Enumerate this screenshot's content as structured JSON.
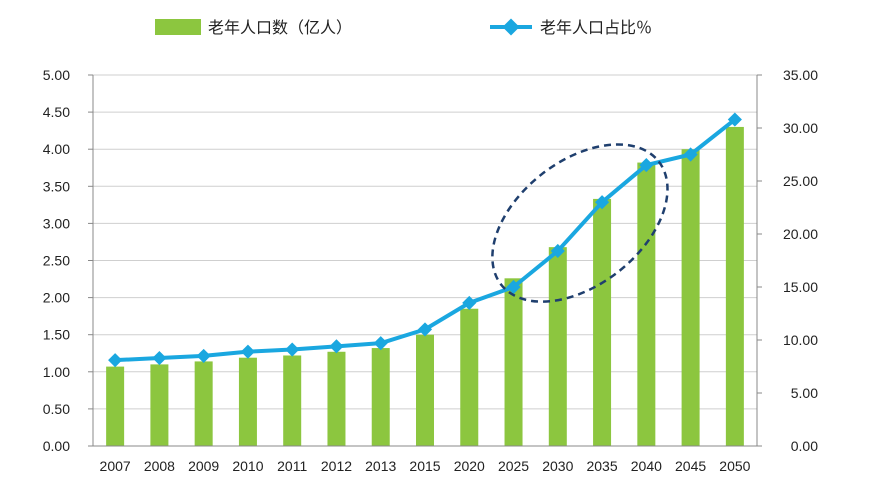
{
  "chart_data": {
    "type": "bar+line",
    "categories": [
      "2007",
      "2008",
      "2009",
      "2010",
      "2011",
      "2012",
      "2013",
      "2015",
      "2020",
      "2025",
      "2030",
      "2035",
      "2040",
      "2045",
      "2050"
    ],
    "series": [
      {
        "name": "老年人口数（亿人）",
        "type": "bar",
        "axis": "left",
        "color": "#8cc63f",
        "values": [
          1.07,
          1.1,
          1.14,
          1.19,
          1.22,
          1.27,
          1.32,
          1.5,
          1.85,
          2.26,
          2.68,
          3.33,
          3.82,
          4.0,
          4.3
        ]
      },
      {
        "name": "老年人口占比％",
        "type": "line",
        "axis": "right",
        "color": "#1aa7e0",
        "values": [
          8.1,
          8.3,
          8.5,
          8.9,
          9.1,
          9.4,
          9.7,
          11.0,
          13.5,
          15.0,
          18.4,
          23.0,
          26.5,
          27.5,
          30.8
        ]
      }
    ],
    "left_axis": {
      "min": 0,
      "max": 5,
      "step": 0.5,
      "ticks": [
        "0.00",
        "0.50",
        "1.00",
        "1.50",
        "2.00",
        "2.50",
        "3.00",
        "3.50",
        "4.00",
        "4.50",
        "5.00"
      ]
    },
    "right_axis": {
      "min": 0,
      "max": 35,
      "step": 5,
      "ticks": [
        "0.00",
        "5.00",
        "10.00",
        "15.00",
        "20.00",
        "25.00",
        "30.00",
        "35.00"
      ]
    },
    "grid": true,
    "legend": "top",
    "annotation": {
      "type": "dashed-ellipse",
      "around": [
        "2025",
        "2040"
      ],
      "color": "#1f3f6e"
    }
  }
}
